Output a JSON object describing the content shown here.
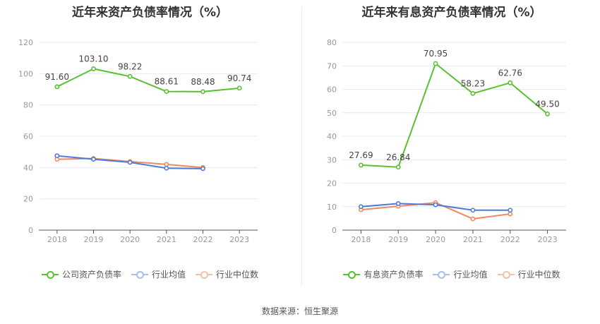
{
  "source_text": "数据来源：恒生聚源",
  "chart_data": [
    {
      "type": "line",
      "title": "近年来资产负债率情况（%）",
      "categories": [
        "2018",
        "2019",
        "2020",
        "2021",
        "2022",
        "2023"
      ],
      "ylim": [
        0,
        120
      ],
      "yticks": [
        0,
        20,
        40,
        60,
        80,
        100,
        120
      ],
      "grid": true,
      "legend_position": "bottom",
      "series": [
        {
          "name": "公司资产负债率",
          "color": "#5ac12e",
          "values": [
            91.6,
            103.1,
            98.22,
            88.61,
            88.48,
            90.74
          ],
          "labels": [
            "91.60",
            "103.10",
            "98.22",
            "88.61",
            "88.48",
            "90.74"
          ]
        },
        {
          "name": "行业均值",
          "color": "#4f7bd8",
          "values": [
            47.5,
            45.3,
            43.3,
            39.6,
            39.3,
            null
          ]
        },
        {
          "name": "行业中位数",
          "color": "#f08a5d",
          "values": [
            45.3,
            45.8,
            43.8,
            42.0,
            40.0,
            null
          ]
        }
      ]
    },
    {
      "type": "line",
      "title": "近年来有息资产负债率情况（%）",
      "categories": [
        "2018",
        "2019",
        "2020",
        "2021",
        "2022",
        "2023"
      ],
      "ylim": [
        0,
        80
      ],
      "yticks": [
        0,
        10,
        20,
        30,
        40,
        50,
        60,
        70,
        80
      ],
      "grid": true,
      "legend_position": "bottom",
      "series": [
        {
          "name": "有息资产负债率",
          "color": "#5ac12e",
          "values": [
            27.69,
            26.84,
            70.95,
            58.23,
            62.76,
            49.5
          ],
          "labels": [
            "27.69",
            "26.84",
            "70.95",
            "58.23",
            "62.76",
            "49.50"
          ]
        },
        {
          "name": "行业均值",
          "color": "#4f7bd8",
          "values": [
            10.0,
            11.3,
            10.8,
            8.5,
            8.5,
            null
          ]
        },
        {
          "name": "行业中位数",
          "color": "#f08a5d",
          "values": [
            8.7,
            10.2,
            11.7,
            4.8,
            6.9,
            null
          ]
        }
      ]
    }
  ]
}
